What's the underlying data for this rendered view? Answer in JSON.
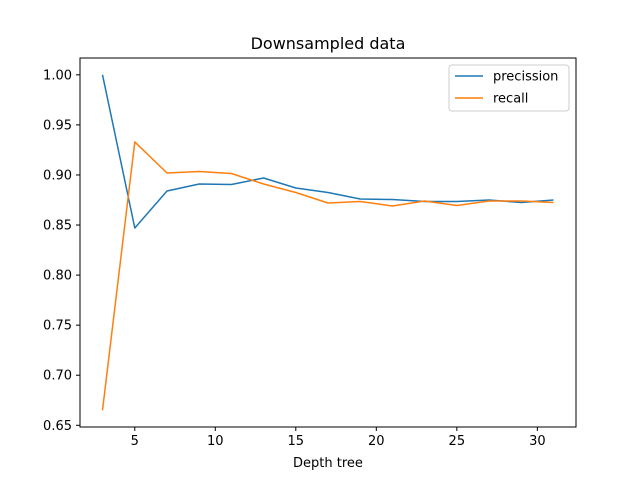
{
  "chart_data": {
    "type": "line",
    "title": "Downsampled data",
    "xlabel": "Depth tree",
    "ylabel": "",
    "xlim": [
      1.6,
      32.4
    ],
    "ylim": [
      0.6483,
      1.0168
    ],
    "xticks": [
      5,
      10,
      15,
      20,
      25,
      30
    ],
    "yticks": [
      0.65,
      0.7,
      0.75,
      0.8,
      0.85,
      0.9,
      0.95,
      1.0
    ],
    "ytick_labels": [
      "0.65",
      "0.70",
      "0.75",
      "0.80",
      "0.85",
      "0.90",
      "0.95",
      "1.00"
    ],
    "grid": false,
    "legend_position": "top-right",
    "x": [
      3,
      5,
      7,
      9,
      11,
      13,
      15,
      17,
      19,
      21,
      23,
      25,
      27,
      29,
      31
    ],
    "series": [
      {
        "name": "precission",
        "color": "#1f77b4",
        "values": [
          1.0,
          0.847,
          0.884,
          0.891,
          0.8905,
          0.897,
          0.887,
          0.8825,
          0.876,
          0.8755,
          0.8735,
          0.8735,
          0.875,
          0.8725,
          0.875
        ]
      },
      {
        "name": "recall",
        "color": "#ff7f0e",
        "values": [
          0.665,
          0.933,
          0.902,
          0.9035,
          0.9015,
          0.891,
          0.8825,
          0.872,
          0.8735,
          0.869,
          0.874,
          0.8695,
          0.874,
          0.874,
          0.8725
        ]
      }
    ]
  }
}
